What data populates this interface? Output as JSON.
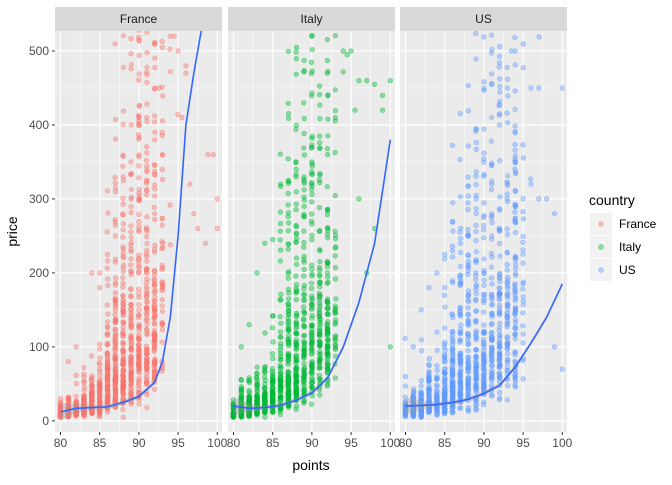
{
  "chart_data": {
    "type": "scatter",
    "xlabel": "points",
    "ylabel": "price",
    "xlim": [
      79.3,
      100.6
    ],
    "ylim": [
      -15,
      527
    ],
    "x_ticks": [
      80,
      85,
      90,
      95,
      100
    ],
    "y_ticks": [
      0,
      100,
      200,
      300,
      400,
      500
    ],
    "grid": true,
    "legend": {
      "title": "country",
      "placement": "right",
      "entries": [
        "France",
        "Italy",
        "US"
      ]
    },
    "colors": {
      "France": "#F8766D",
      "Italy": "#00BA38",
      "US": "#619CFF",
      "smooth": "#3366FF",
      "panel_bg": "#EBEBEB",
      "strip_bg": "#D9D9D9"
    },
    "point_alpha": 0.4,
    "panels": [
      {
        "name": "France",
        "smooth_line": [
          [
            80,
            12
          ],
          [
            82,
            17
          ],
          [
            84,
            18
          ],
          [
            86,
            19
          ],
          [
            88,
            25
          ],
          [
            90,
            33
          ],
          [
            92,
            52
          ],
          [
            93,
            80
          ],
          [
            94,
            140
          ],
          [
            95,
            250
          ],
          [
            96,
            400
          ],
          [
            97,
            470
          ],
          [
            98,
            530
          ]
        ],
        "bulk": [
          {
            "x_range": [
              80,
              93
            ],
            "base": 10,
            "growth": 0.22,
            "count": 900
          },
          {
            "x_range": [
              86,
              97
            ],
            "base": 20,
            "growth": 0.3,
            "count": 500
          }
        ],
        "outliers": [
          [
            98.5,
            240
          ],
          [
            98.8,
            360
          ],
          [
            99.5,
            360
          ],
          [
            100,
            300
          ],
          [
            100,
            260
          ],
          [
            96,
            470
          ],
          [
            96,
            480
          ],
          [
            95,
            500
          ],
          [
            94,
            520
          ],
          [
            94.5,
            520
          ],
          [
            93,
            505
          ],
          [
            92.5,
            450
          ],
          [
            91,
            410
          ],
          [
            90,
            410
          ],
          [
            89,
            300
          ],
          [
            88,
            330
          ],
          [
            87,
            250
          ],
          [
            86,
            225
          ],
          [
            85,
            200
          ],
          [
            84,
            200
          ],
          [
            85,
            180
          ],
          [
            82,
            100
          ],
          [
            81,
            80
          ],
          [
            80,
            30
          ],
          [
            97,
            280
          ],
          [
            97.5,
            260
          ],
          [
            96.5,
            320
          ],
          [
            95.5,
            410
          ],
          [
            92,
            380
          ],
          [
            93,
            340
          ]
        ]
      },
      {
        "name": "Italy",
        "smooth_line": [
          [
            80,
            20
          ],
          [
            82,
            17
          ],
          [
            84,
            18
          ],
          [
            86,
            21
          ],
          [
            88,
            28
          ],
          [
            90,
            38
          ],
          [
            92,
            58
          ],
          [
            94,
            100
          ],
          [
            96,
            160
          ],
          [
            98,
            240
          ],
          [
            100,
            380
          ]
        ],
        "bulk": [
          {
            "x_range": [
              80,
              93
            ],
            "base": 12,
            "growth": 0.2,
            "count": 900
          },
          {
            "x_range": [
              86,
              99
            ],
            "base": 22,
            "growth": 0.3,
            "count": 500
          }
        ],
        "outliers": [
          [
            100,
            460
          ],
          [
            99,
            440
          ],
          [
            99,
            420
          ],
          [
            98,
            455
          ],
          [
            97,
            460
          ],
          [
            96,
            460
          ],
          [
            95,
            500
          ],
          [
            94,
            500
          ],
          [
            94.5,
            495
          ],
          [
            95.5,
            420
          ],
          [
            93,
            410
          ],
          [
            92,
            360
          ],
          [
            91,
            385
          ],
          [
            90,
            350
          ],
          [
            89,
            330
          ],
          [
            88,
            340
          ],
          [
            87,
            325
          ],
          [
            86,
            320
          ],
          [
            85,
            245
          ],
          [
            84,
            240
          ],
          [
            83,
            200
          ],
          [
            82,
            130
          ],
          [
            81,
            100
          ],
          [
            80,
            20
          ],
          [
            97,
            200
          ],
          [
            96,
            300
          ],
          [
            98,
            260
          ],
          [
            100,
            100
          ]
        ]
      },
      {
        "name": "US",
        "smooth_line": [
          [
            80,
            20
          ],
          [
            82,
            21
          ],
          [
            84,
            22
          ],
          [
            86,
            25
          ],
          [
            88,
            29
          ],
          [
            90,
            37
          ],
          [
            92,
            48
          ],
          [
            94,
            73
          ],
          [
            96,
            105
          ],
          [
            98,
            140
          ],
          [
            100,
            185
          ]
        ],
        "bulk": [
          {
            "x_range": [
              80,
              95
            ],
            "base": 15,
            "growth": 0.17,
            "count": 900
          },
          {
            "x_range": [
              85,
              100
            ],
            "base": 25,
            "growth": 0.25,
            "count": 500
          }
        ],
        "outliers": [
          [
            100,
            450
          ],
          [
            97,
            450
          ],
          [
            96,
            450
          ],
          [
            94,
            500
          ],
          [
            93.5,
            500
          ],
          [
            93,
            450
          ],
          [
            92,
            400
          ],
          [
            90,
            350
          ],
          [
            91,
            320
          ],
          [
            89,
            300
          ],
          [
            88,
            250
          ],
          [
            87,
            240
          ],
          [
            86,
            230
          ],
          [
            85,
            225
          ],
          [
            84,
            200
          ],
          [
            83,
            180
          ],
          [
            82,
            150
          ],
          [
            81,
            100
          ],
          [
            80,
            60
          ],
          [
            98,
            300
          ],
          [
            99,
            280
          ],
          [
            97,
            300
          ],
          [
            96,
            320
          ],
          [
            95,
            300
          ],
          [
            99,
            100
          ],
          [
            100,
            70
          ]
        ]
      }
    ]
  }
}
